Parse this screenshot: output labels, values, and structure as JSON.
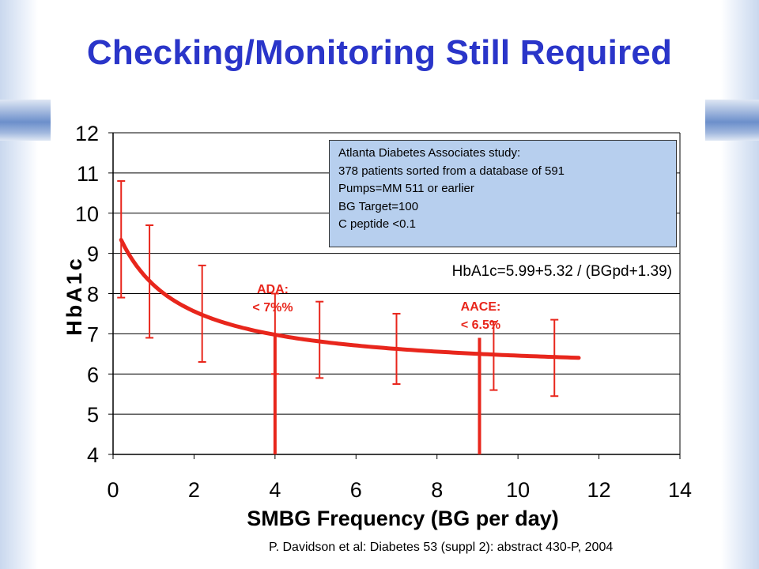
{
  "slide": {
    "title": "Checking/Monitoring Still Required",
    "citation": "P. Davidson et al: Diabetes 53 (suppl 2): abstract 430-P, 2004"
  },
  "info_box": {
    "lines": [
      "Atlanta Diabetes Associates study:",
      "378 patients sorted from a database of 591",
      "Pumps=MM 511 or earlier",
      "BG Target=100",
      "C peptide <0.1"
    ]
  },
  "equation": "HbA1c=5.99+5.32 / (BGpd+1.39)",
  "annotations": {
    "ada": {
      "line1": "ADA:",
      "line2": "< 7%%",
      "x": 4
    },
    "aace": {
      "line1": "AACE:",
      "line2": "< 6.5%",
      "x": 9.05
    }
  },
  "colors": {
    "title": "#2a35c9",
    "series": "#e8261c",
    "info_box_bg": "#b7cfee",
    "grid": "#000000"
  },
  "chart_data": {
    "type": "line",
    "xlabel": "SMBG Frequency (BG per day)",
    "ylabel": "HbA1c",
    "xlim": [
      0,
      14
    ],
    "ylim": [
      4,
      12
    ],
    "xticks": [
      0,
      2,
      4,
      6,
      8,
      10,
      12,
      14
    ],
    "yticks": [
      4,
      5,
      6,
      7,
      8,
      9,
      10,
      11,
      12
    ],
    "grid": "horizontal",
    "fit_curve": {
      "formula": "HbA1c=5.99+5.32 / (BGpd+1.39)",
      "intercept": 5.99,
      "numerator": 5.32,
      "offset": 1.39,
      "x_range": [
        0.2,
        11.5
      ]
    },
    "error_bars": [
      {
        "x": 0.2,
        "low": 7.9,
        "high": 10.8
      },
      {
        "x": 0.9,
        "low": 6.9,
        "high": 9.7
      },
      {
        "x": 2.2,
        "low": 6.3,
        "high": 8.7
      },
      {
        "x": 4.0,
        "low": 6.0,
        "high": 8.0
      },
      {
        "x": 5.1,
        "low": 5.9,
        "high": 7.8
      },
      {
        "x": 7.0,
        "low": 5.75,
        "high": 7.5
      },
      {
        "x": 9.4,
        "low": 5.6,
        "high": 7.3
      },
      {
        "x": 10.9,
        "low": 5.45,
        "high": 7.35
      }
    ],
    "target_lines": [
      {
        "name": "ADA",
        "x": 4.0,
        "y_top": 7.0
      },
      {
        "name": "AACE",
        "x": 9.05,
        "y_top": 6.9
      }
    ]
  }
}
